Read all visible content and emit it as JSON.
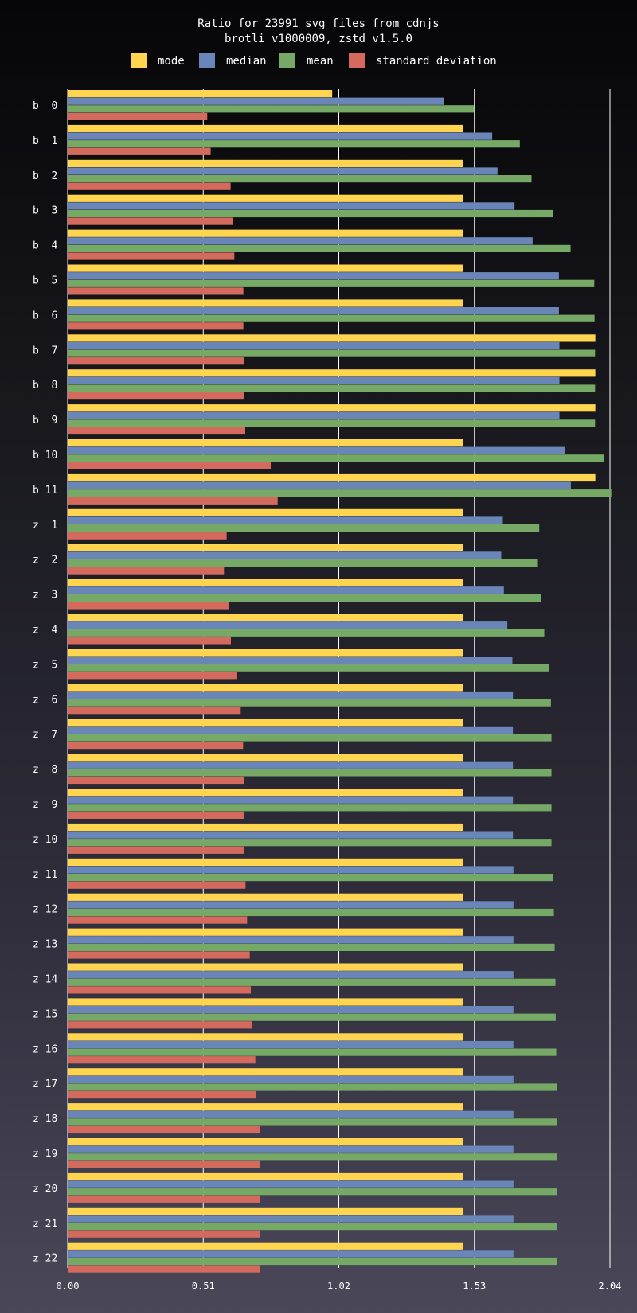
{
  "chart_data": {
    "type": "bar",
    "orientation": "horizontal",
    "title": "Ratio for 23991 svg files from cdnjs",
    "subtitle": "brotli v1000009, zstd v1.5.0",
    "xlabel": "",
    "ylabel": "",
    "xlim": [
      0,
      2.04
    ],
    "xticks": [
      "0.00",
      "0.51",
      "1.02",
      "1.53",
      "2.04"
    ],
    "grid": true,
    "legend_position": "top",
    "categories": [
      "b  0",
      "b  1",
      "b  2",
      "b  3",
      "b  4",
      "b  5",
      "b  6",
      "b  7",
      "b  8",
      "b  9",
      "b 10",
      "b 11",
      "z  1",
      "z  2",
      "z  3",
      "z  4",
      "z  5",
      "z  6",
      "z  7",
      "z  8",
      "z  9",
      "z 10",
      "z 11",
      "z 12",
      "z 13",
      "z 14",
      "z 15",
      "z 16",
      "z 17",
      "z 18",
      "z 19",
      "z 20",
      "z 21",
      "z 22"
    ],
    "series": [
      {
        "name": "mode",
        "color": "#ffd54f",
        "values": [
          0.995,
          1.488,
          1.488,
          1.488,
          1.488,
          1.488,
          1.488,
          1.985,
          1.985,
          1.985,
          1.488,
          1.985,
          1.488,
          1.488,
          1.488,
          1.488,
          1.488,
          1.488,
          1.488,
          1.488,
          1.488,
          1.488,
          1.488,
          1.488,
          1.488,
          1.488,
          1.488,
          1.488,
          1.488,
          1.488,
          1.488,
          1.488,
          1.488,
          1.488
        ]
      },
      {
        "name": "median",
        "color": "#6a86b8",
        "values": [
          1.415,
          1.597,
          1.617,
          1.681,
          1.749,
          1.848,
          1.848,
          1.85,
          1.85,
          1.85,
          1.872,
          1.893,
          1.637,
          1.631,
          1.641,
          1.654,
          1.673,
          1.675,
          1.675,
          1.675,
          1.675,
          1.675,
          1.677,
          1.677,
          1.677,
          1.677,
          1.677,
          1.677,
          1.677,
          1.677,
          1.677,
          1.677,
          1.677,
          1.677
        ]
      },
      {
        "name": "mean",
        "color": "#76a866",
        "values": [
          1.529,
          1.701,
          1.745,
          1.826,
          1.892,
          1.981,
          1.982,
          1.984,
          1.984,
          1.984,
          2.018,
          2.045,
          1.774,
          1.769,
          1.781,
          1.793,
          1.812,
          1.818,
          1.82,
          1.82,
          1.82,
          1.82,
          1.827,
          1.829,
          1.832,
          1.835,
          1.836,
          1.838,
          1.84,
          1.84,
          1.84,
          1.84,
          1.84,
          1.84
        ]
      },
      {
        "name": "standard deviation",
        "color": "#d46a5e",
        "values": [
          0.525,
          0.538,
          0.613,
          0.62,
          0.627,
          0.661,
          0.661,
          0.665,
          0.665,
          0.668,
          0.764,
          0.79,
          0.598,
          0.588,
          0.605,
          0.614,
          0.638,
          0.651,
          0.66,
          0.665,
          0.665,
          0.665,
          0.669,
          0.675,
          0.685,
          0.689,
          0.695,
          0.706,
          0.71,
          0.722,
          0.725,
          0.725,
          0.725,
          0.725
        ]
      }
    ]
  }
}
